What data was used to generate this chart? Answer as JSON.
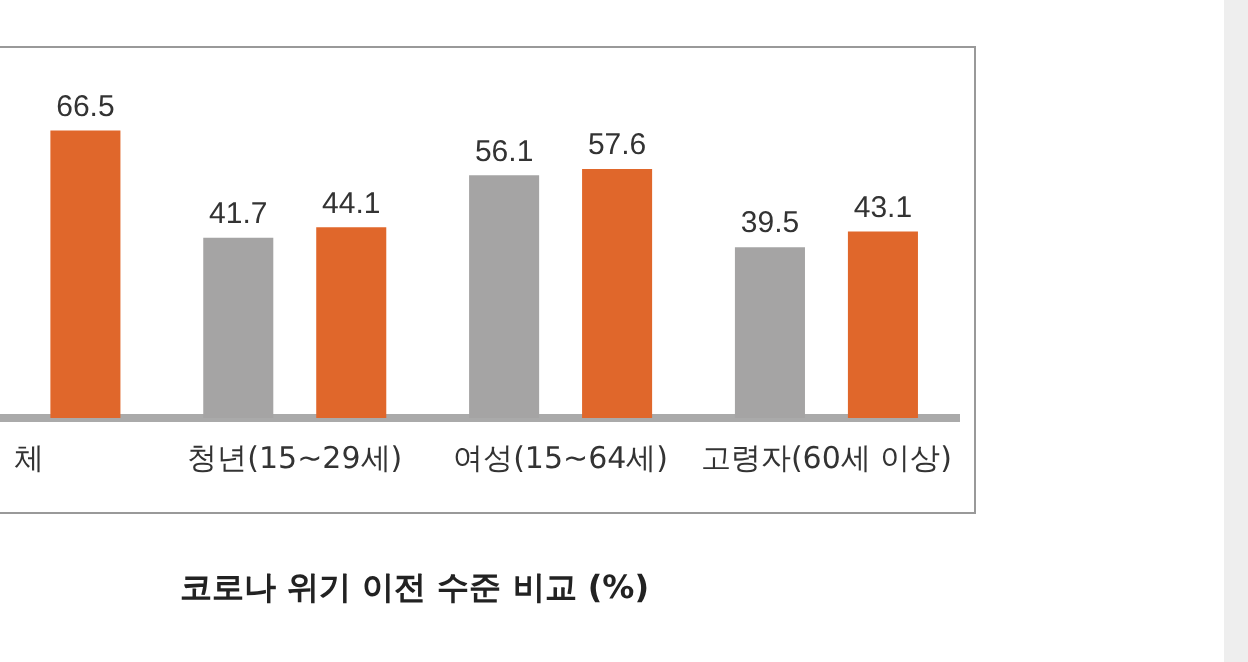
{
  "chart_data": {
    "type": "bar",
    "categories": [
      "체",
      "청년(15~29세)",
      "여성(15~64세)",
      "고령자(60세 이상)"
    ],
    "series": [
      {
        "color": "#a5a4a4",
        "values": [
          null,
          41.7,
          56.1,
          39.5
        ]
      },
      {
        "color": "#e0672b",
        "values": [
          66.5,
          44.1,
          57.6,
          43.1
        ]
      }
    ],
    "tick_labels": "x",
    "grid": false,
    "legend": false,
    "data_labels": true,
    "annotations": [
      "코로나 위기 이전 수준 비교 (%)"
    ]
  }
}
